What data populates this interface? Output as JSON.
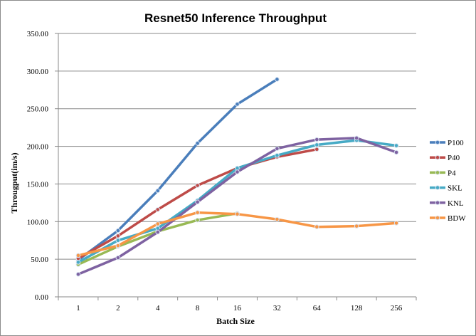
{
  "chart_data": {
    "type": "line",
    "title": "Resnet50 Inference Throughput",
    "xlabel": "Batch Size",
    "ylabel": "Througput(im/s)",
    "categories": [
      "1",
      "2",
      "4",
      "8",
      "16",
      "32",
      "64",
      "128",
      "256"
    ],
    "ylim": [
      0,
      350
    ],
    "yticks": [
      "0.00",
      "50.00",
      "100.00",
      "150.00",
      "200.00",
      "250.00",
      "300.00",
      "350.00"
    ],
    "grid": "horizontal",
    "legend": "right",
    "series": [
      {
        "name": "P100",
        "color": "#4a7ebb",
        "values": [
          49,
          88,
          141,
          204,
          256,
          289,
          null,
          null,
          null
        ]
      },
      {
        "name": "P40",
        "color": "#be4b48",
        "values": [
          51,
          81,
          116,
          148,
          171,
          186,
          196,
          null,
          null
        ]
      },
      {
        "name": "P4",
        "color": "#98b954",
        "values": [
          43,
          67,
          87,
          102,
          111,
          null,
          null,
          null,
          null
        ]
      },
      {
        "name": "SKL",
        "color": "#46aac5",
        "values": [
          46,
          75,
          91,
          128,
          171,
          188,
          202,
          208,
          201
        ]
      },
      {
        "name": "KNL",
        "color": "#7e62a1",
        "values": [
          30,
          52,
          86,
          126,
          166,
          197,
          209,
          211,
          192
        ]
      },
      {
        "name": "BDW",
        "color": "#f79646",
        "values": [
          55,
          68,
          97,
          112,
          110,
          103,
          93,
          94,
          98
        ]
      }
    ]
  }
}
